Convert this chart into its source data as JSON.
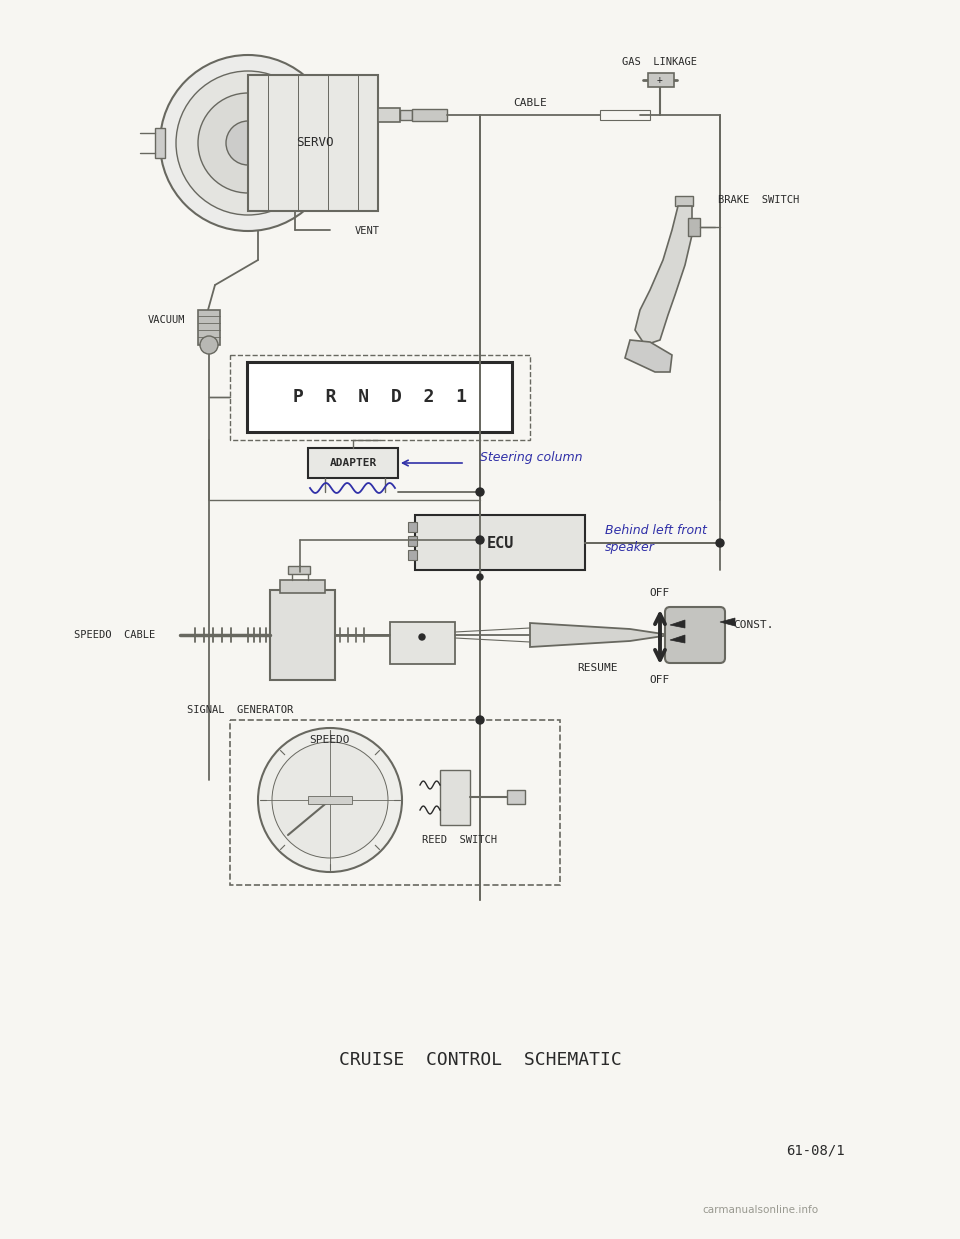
{
  "title": "CRUISE  CONTROL  SCHEMATIC",
  "page_ref": "61-08/1",
  "watermark": "carmanualsonline.info",
  "bg_color": "#f7f6f2",
  "line_color": "#686860",
  "dark_color": "#2a2a2a",
  "handwriting_color": "#3030a8",
  "labels": {
    "servo": "SERVO",
    "cable": "CABLE",
    "gas_linkage": "GAS  LINKAGE",
    "brake_switch": "BRAKE  SWITCH",
    "vacuum": "VACUUM",
    "vent": "VENT",
    "prnd": "P  R  N  D  2  1",
    "adapter": "ADAPTER",
    "steering_col": "Steering column",
    "ecu": "ECU",
    "behind1": "Behind left front",
    "behind2": "speaker",
    "speedo_cable": "SPEEDO  CABLE",
    "signal_gen": "SIGNAL  GENERATOR",
    "speedo": "SPEEDO",
    "reed_switch": "REED  SWITCH",
    "off_top": "OFF",
    "const": "CONST.",
    "resume": "RESUME",
    "off_bottom": "OFF"
  }
}
